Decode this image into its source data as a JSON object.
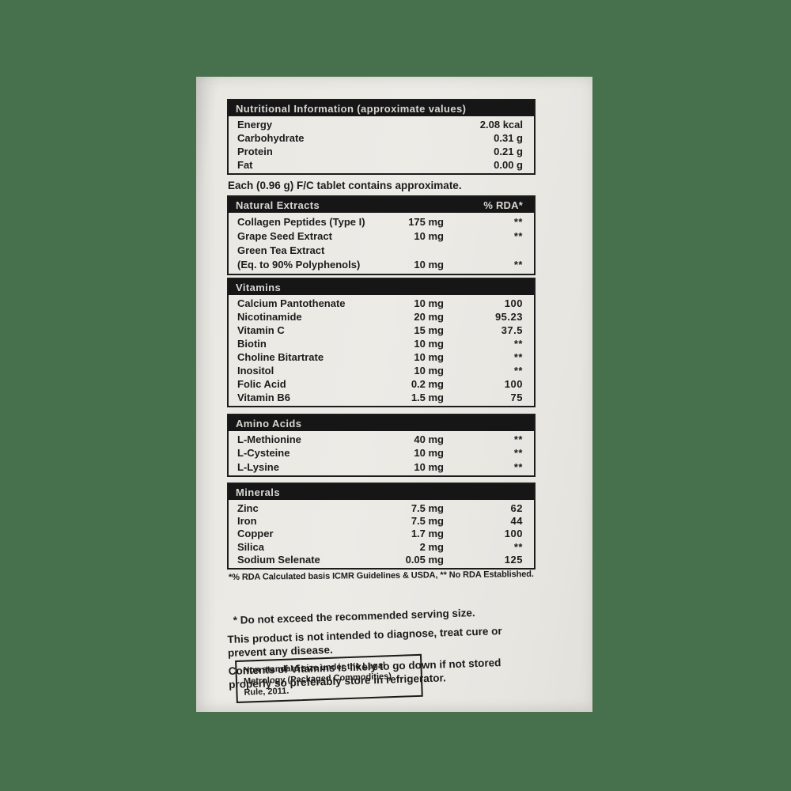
{
  "background_color": "#47704d",
  "paper_color": "#e9e7e2",
  "header_bar_color": "#161616",
  "nutrition_table": {
    "title": "Nutritional Information (approximate values)",
    "rows": [
      {
        "name": "Energy",
        "value": "2.08 kcal"
      },
      {
        "name": "Carbohydrate",
        "value": "0.31 g"
      },
      {
        "name": "Protein",
        "value": "0.21 g"
      },
      {
        "name": "Fat",
        "value": "0.00 g"
      }
    ]
  },
  "serving_line": "Each (0.96 g) F/C tablet contains approximate.",
  "sections": [
    {
      "title": "Natural Extracts",
      "rda_header": "% RDA*",
      "rows": [
        {
          "name": "Collagen Peptides (Type I)",
          "amount": "175 mg",
          "rda": "**"
        },
        {
          "name": "Grape Seed Extract",
          "amount": "10 mg",
          "rda": "**"
        },
        {
          "name": "Green Tea Extract",
          "amount": "",
          "rda": ""
        },
        {
          "name": "(Eq. to 90% Polyphenols)",
          "amount": "10 mg",
          "rda": "**"
        }
      ]
    },
    {
      "title": "Vitamins",
      "rda_header": "",
      "rows": [
        {
          "name": "Calcium Pantothenate",
          "amount": "10 mg",
          "rda": "100"
        },
        {
          "name": "Nicotinamide",
          "amount": "20 mg",
          "rda": "95.23"
        },
        {
          "name": "Vitamin C",
          "amount": "15 mg",
          "rda": "37.5"
        },
        {
          "name": "Biotin",
          "amount": "10 mg",
          "rda": "**"
        },
        {
          "name": "Choline Bitartrate",
          "amount": "10 mg",
          "rda": "**"
        },
        {
          "name": "Inositol",
          "amount": "10 mg",
          "rda": "**"
        },
        {
          "name": "Folic Acid",
          "amount": "0.2 mg",
          "rda": "100"
        },
        {
          "name": "Vitamin B6",
          "amount": "1.5 mg",
          "rda": "75"
        }
      ]
    },
    {
      "title": "Amino Acids",
      "rda_header": "",
      "rows": [
        {
          "name": "L-Methionine",
          "amount": "40 mg",
          "rda": "**"
        },
        {
          "name": "L-Cysteine",
          "amount": "10 mg",
          "rda": "**"
        },
        {
          "name": "L-Lysine",
          "amount": "10 mg",
          "rda": "**"
        }
      ]
    },
    {
      "title": "Minerals",
      "rda_header": "",
      "rows": [
        {
          "name": "Zinc",
          "amount": "7.5 mg",
          "rda": "62"
        },
        {
          "name": "Iron",
          "amount": "7.5 mg",
          "rda": "44"
        },
        {
          "name": "Copper",
          "amount": "1.7 mg",
          "rda": "100"
        },
        {
          "name": "Silica",
          "amount": "2 mg",
          "rda": "**"
        },
        {
          "name": "Sodium Selenate",
          "amount": "0.05 mg",
          "rda": "125"
        }
      ]
    }
  ],
  "footnote": "*% RDA Calculated basis ICMR Guidelines & USDA,  ** No RDA Established.",
  "notes": [
    "* Do not exceed the recommended serving size.",
    "This product is not intended to diagnose, treat cure or prevent any disease.",
    "Contents of Vitamins is likely to go down if not stored properly so preferably store in refrigerator."
  ],
  "legal_box": "Non standard size under the Legal Metrology (Packaged Commodities) Rule, 2011."
}
